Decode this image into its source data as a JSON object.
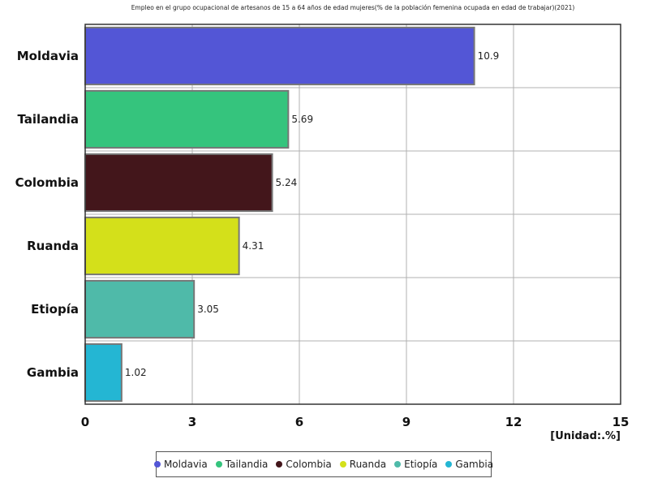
{
  "chart_data": {
    "type": "bar",
    "orientation": "horizontal",
    "title": "Empleo en el grupo ocupacional de artesanos de 15 a 64 años de edad mujeres(% de la población femenina ocupada en edad de trabajar)(2021)",
    "unit_label": "[Unidad:.%]",
    "categories": [
      "Moldavia",
      "Tailandia",
      "Colombia",
      "Ruanda",
      "Etiopía",
      "Gambia"
    ],
    "values": [
      10.9,
      5.69,
      5.24,
      4.31,
      3.05,
      1.02
    ],
    "value_labels": [
      "10.9",
      "5.69",
      "5.24",
      "4.31",
      "3.05",
      "1.02"
    ],
    "colors": [
      "#5356d6",
      "#35c47d",
      "#43161b",
      "#d4e01a",
      "#4fbaa9",
      "#24b6d3"
    ],
    "xlim": [
      0,
      15
    ],
    "x_ticks": [
      "0",
      "3",
      "6",
      "9",
      "12",
      "15"
    ],
    "x_tick_values": [
      0,
      3,
      6,
      9,
      12,
      15
    ],
    "grid": true,
    "legend_position": "bottom"
  }
}
